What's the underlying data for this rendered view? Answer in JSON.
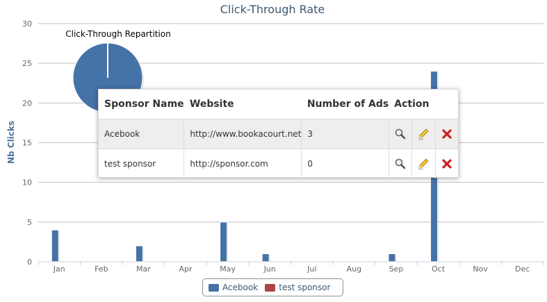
{
  "chart_data": {
    "type": "bar",
    "title": "Click-Through Rate",
    "ylabel": "Nb Clicks",
    "xlabel": "",
    "categories": [
      "Jan",
      "Feb",
      "Mar",
      "Apr",
      "May",
      "Jun",
      "Jul",
      "Aug",
      "Sep",
      "Oct",
      "Nov",
      "Dec"
    ],
    "ylim": [
      0,
      30
    ],
    "yticks": [
      0,
      5,
      10,
      15,
      20,
      25,
      30
    ],
    "grid": true,
    "legend_position": "bottom-center",
    "series": [
      {
        "name": "Acebook",
        "color": "#4572a7",
        "values": [
          4,
          0,
          2,
          0,
          5,
          1,
          0,
          0,
          1,
          24,
          0,
          0
        ]
      },
      {
        "name": "test sponsor",
        "color": "#aa4643",
        "values": [
          0,
          0,
          0,
          0,
          0,
          0,
          0,
          0,
          0,
          0,
          0,
          0
        ]
      }
    ],
    "pie": {
      "title": "Click-Through Repartition",
      "slices": [
        {
          "name": "Acebook",
          "value": 100,
          "color": "#4572a7"
        },
        {
          "name": "test sponsor",
          "value": 0,
          "color": "#aa4643"
        }
      ]
    }
  },
  "table": {
    "headers": [
      "Sponsor Name",
      "Website",
      "Number of Ads",
      "Action"
    ],
    "rows": [
      {
        "name": "Acebook",
        "website": "http://www.bookacourt.net",
        "ads": "3"
      },
      {
        "name": "test sponsor",
        "website": "http://sponsor.com",
        "ads": "0"
      }
    ],
    "action_icons": [
      "magnifier-icon",
      "pencil-icon",
      "delete-icon"
    ]
  },
  "legend": {
    "items": [
      {
        "label": "Acebook",
        "color": "#4572a7"
      },
      {
        "label": "test sponsor",
        "color": "#aa4643"
      }
    ]
  }
}
